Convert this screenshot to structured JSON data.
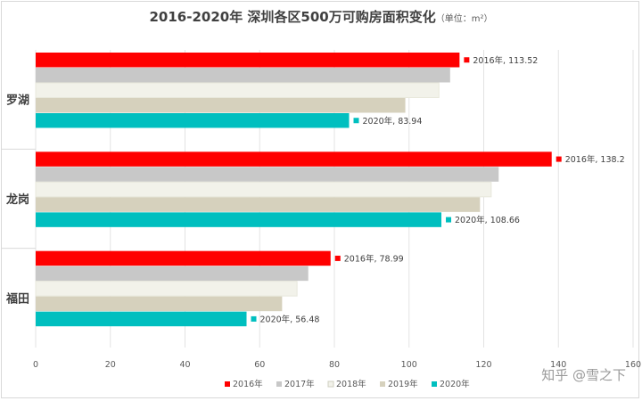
{
  "title": "2016-2020年 深圳各区500万可购房面积变化",
  "title_unit": "（单位：m²）",
  "watermark": "知乎 @雪之下",
  "chart_data": {
    "type": "bar",
    "orientation": "horizontal",
    "categories": [
      "罗湖",
      "龙岗",
      "福田"
    ],
    "series": [
      {
        "name": "2016年",
        "color": "#ff0000",
        "values": [
          113.52,
          138.2,
          78.99
        ]
      },
      {
        "name": "2017年",
        "color": "#c8c8c8",
        "values": [
          111,
          124,
          73
        ]
      },
      {
        "name": "2018年",
        "color": "#f2f2ea",
        "values": [
          108,
          122,
          70
        ]
      },
      {
        "name": "2019年",
        "color": "#d6d1bd",
        "values": [
          99,
          119,
          66
        ]
      },
      {
        "name": "2020年",
        "color": "#00bfbf",
        "values": [
          83.94,
          108.66,
          56.48
        ]
      }
    ],
    "data_labels": [
      {
        "category": "罗湖",
        "series": "2016年",
        "text": "2016年, 113.52",
        "color": "#ff0000"
      },
      {
        "category": "罗湖",
        "series": "2020年",
        "text": "2020年, 83.94",
        "color": "#00bfbf"
      },
      {
        "category": "龙岗",
        "series": "2016年",
        "text": "2016年, 138.2",
        "color": "#ff0000"
      },
      {
        "category": "龙岗",
        "series": "2020年",
        "text": "2020年, 108.66",
        "color": "#00bfbf"
      },
      {
        "category": "福田",
        "series": "2016年",
        "text": "2016年, 78.99",
        "color": "#ff0000"
      },
      {
        "category": "福田",
        "series": "2020年",
        "text": "2020年, 56.48",
        "color": "#00bfbf"
      }
    ],
    "xlim": [
      0,
      160
    ],
    "xticks": [
      0,
      20,
      40,
      60,
      80,
      100,
      120,
      140,
      160
    ],
    "grid": "vertical",
    "legend": "bottom"
  }
}
